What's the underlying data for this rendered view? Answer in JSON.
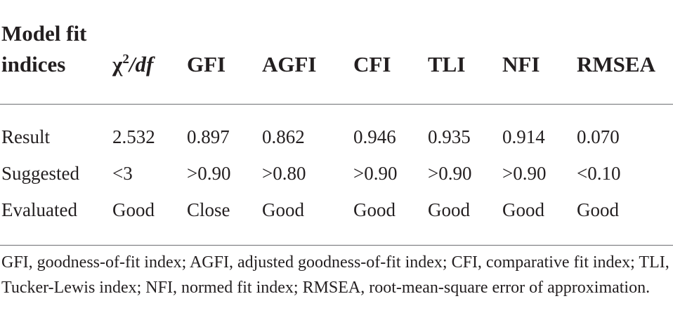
{
  "header": {
    "first_col": "Model fit indices",
    "chi_symbol": "χ",
    "chi_sup": "2",
    "chi_df": "/df",
    "cols": [
      "GFI",
      "AGFI",
      "CFI",
      "TLI",
      "NFI",
      "RMSEA"
    ]
  },
  "rows": [
    {
      "label": "Result",
      "values": [
        "2.532",
        "0.897",
        "0.862",
        "0.946",
        "0.935",
        "0.914",
        "0.070"
      ]
    },
    {
      "label": "Suggested",
      "values": [
        "<3",
        ">0.90",
        ">0.80",
        ">0.90",
        ">0.90",
        ">0.90",
        "<0.10"
      ]
    },
    {
      "label": "Evaluated",
      "values": [
        "Good",
        "Close",
        "Good",
        "Good",
        "Good",
        "Good",
        "Good"
      ]
    }
  ],
  "footnote": "GFI, goodness-of-fit index; AGFI, adjusted goodness-of-fit index; CFI, comparative fit index; TLI, Tucker-Lewis index; NFI, normed fit index; RMSEA, root-mean-square error of approximation."
}
